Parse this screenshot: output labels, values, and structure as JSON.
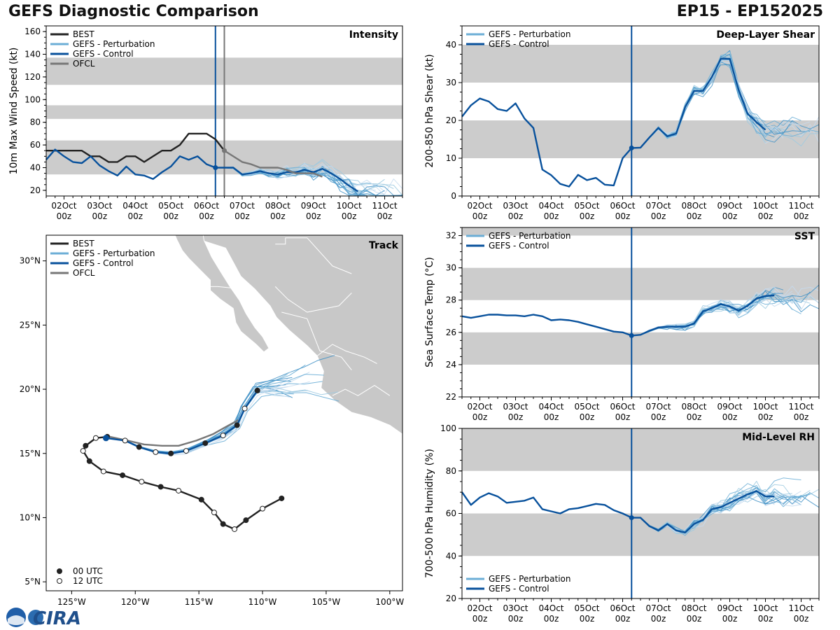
{
  "header": {
    "title": "GEFS Diagnostic Comparison",
    "storm_id": "EP15 - EP152025"
  },
  "logo": {
    "text": "CIRA"
  },
  "colors": {
    "best": "#222222",
    "perturbation": "#6baed6",
    "control": "#08519c",
    "ofcl": "#777777",
    "band": "#cccccc"
  },
  "time_ticks": [
    "02Oct 00z",
    "03Oct 00z",
    "04Oct 00z",
    "05Oct 00z",
    "06Oct 00z",
    "07Oct 00z",
    "08Oct 00z",
    "09Oct 00z",
    "10Oct 00z",
    "11Oct 00z"
  ],
  "chart_data": [
    {
      "id": "intensity",
      "type": "line",
      "title": "Intensity",
      "ylabel": "10m Max Wind Speed (kt)",
      "ylim": [
        15,
        165
      ],
      "yticks": [
        20,
        40,
        60,
        80,
        100,
        120,
        140,
        160
      ],
      "xlim_days": [
        1.5,
        11.5
      ],
      "current_day": 6.25,
      "ofcl_start_day": 6.5,
      "bands": [
        [
          34,
          64
        ],
        [
          83,
          95
        ],
        [
          113,
          137
        ]
      ],
      "legend": [
        "BEST",
        "GEFS - Perturbation",
        "GEFS - Control",
        "OFCL"
      ],
      "series": [
        {
          "name": "BEST",
          "x_start": 1.5,
          "step": 0.25,
          "values": [
            55,
            55,
            55,
            55,
            55,
            50,
            50,
            45,
            45,
            50,
            50,
            45,
            50,
            55,
            55,
            60,
            70,
            70,
            70,
            65,
            55
          ]
        },
        {
          "name": "GEFS - Control",
          "x_start": 1.5,
          "step": 0.25,
          "values": [
            47,
            56,
            50,
            45,
            44,
            50,
            42,
            37,
            33,
            41,
            34,
            33,
            30,
            36,
            41,
            50,
            47,
            50,
            43,
            40,
            40,
            40,
            34,
            35,
            37,
            35,
            34,
            36,
            36,
            38,
            36,
            39,
            35,
            30,
            24,
            19
          ]
        },
        {
          "name": "OFCL",
          "x_start": 6.5,
          "step": 0.25,
          "values": [
            55,
            50,
            45,
            43,
            40,
            40,
            40,
            38,
            35,
            35,
            35,
            32
          ]
        }
      ],
      "perturbation_members": 20
    },
    {
      "id": "shear",
      "type": "line",
      "title": "Deep-Layer Shear",
      "ylabel": "200-850 hPa Shear (kt)",
      "ylim": [
        0,
        45
      ],
      "yticks": [
        0,
        10,
        20,
        30,
        40
      ],
      "xlim_days": [
        1.5,
        11.5
      ],
      "current_day": 6.25,
      "bands": [
        [
          10,
          20
        ],
        [
          30,
          40
        ]
      ],
      "legend": [
        "GEFS - Perturbation",
        "GEFS - Control"
      ],
      "series": [
        {
          "name": "GEFS - Control",
          "x_start": 1.5,
          "step": 0.25,
          "values": [
            21,
            24,
            25.8,
            25,
            23,
            22.5,
            24.5,
            20.5,
            18,
            7,
            5.5,
            3.2,
            2.5,
            5.6,
            4.2,
            4.8,
            3,
            2.8,
            10,
            12.7,
            12.8,
            15.5,
            18,
            15.8,
            16.5,
            23.5,
            27.8,
            27.8,
            31.5,
            36.3,
            36.3,
            28,
            21.8,
            19.5,
            17.5
          ]
        }
      ],
      "perturbation_members": 20
    },
    {
      "id": "sst",
      "type": "line",
      "title": "SST",
      "ylabel": "Sea Surface Temp (°C)",
      "ylim": [
        22,
        32.5
      ],
      "yticks": [
        22,
        24,
        26,
        28,
        30,
        32
      ],
      "xlim_days": [
        1.5,
        11.5
      ],
      "current_day": 6.25,
      "bands": [
        [
          24,
          26
        ],
        [
          28,
          30
        ],
        [
          32,
          32.5
        ]
      ],
      "legend": [
        "GEFS - Perturbation",
        "GEFS - Control"
      ],
      "series": [
        {
          "name": "GEFS - Control",
          "x_start": 1.5,
          "step": 0.25,
          "values": [
            27,
            26.9,
            27,
            27.1,
            27.1,
            27.05,
            27.05,
            27,
            27.1,
            27,
            26.75,
            26.8,
            26.75,
            26.65,
            26.5,
            26.35,
            26.2,
            26.05,
            26,
            25.8,
            25.85,
            26.1,
            26.3,
            26.35,
            26.35,
            26.35,
            26.55,
            27.3,
            27.5,
            27.75,
            27.6,
            27.35,
            27.65,
            28.1,
            28.25,
            28.3
          ]
        }
      ],
      "perturbation_members": 20
    },
    {
      "id": "rh",
      "type": "line",
      "title": "Mid-Level RH",
      "ylabel": "700-500 hPa Humidity (%)",
      "ylim": [
        20,
        100
      ],
      "yticks": [
        20,
        40,
        60,
        80,
        100
      ],
      "xlim_days": [
        1.5,
        11.5
      ],
      "current_day": 6.25,
      "bands": [
        [
          40,
          60
        ],
        [
          80,
          100
        ]
      ],
      "legend": [
        "GEFS - Perturbation",
        "GEFS - Control"
      ],
      "series": [
        {
          "name": "GEFS - Control",
          "x_start": 1.5,
          "step": 0.25,
          "values": [
            70,
            64,
            67.5,
            69.5,
            68,
            65,
            65.5,
            66,
            67.5,
            62,
            61,
            60,
            62,
            62.5,
            63.5,
            64.5,
            64,
            61.5,
            60,
            58,
            58,
            54,
            52,
            55,
            52,
            51,
            55,
            57,
            62,
            63,
            65,
            67,
            69,
            70.5,
            68,
            68
          ]
        }
      ],
      "perturbation_members": 20
    },
    {
      "id": "track",
      "type": "scatter",
      "title": "Track",
      "xlim": [
        -127,
        -99
      ],
      "ylim": [
        4.3,
        32
      ],
      "xticks": [
        -125,
        -120,
        -115,
        -110,
        -105,
        -100
      ],
      "xtick_labels": [
        "125°W",
        "120°W",
        "115°W",
        "110°W",
        "105°W",
        "100°W"
      ],
      "yticks": [
        5,
        10,
        15,
        20,
        25,
        30
      ],
      "ytick_labels": [
        "5°N",
        "10°N",
        "15°N",
        "20°N",
        "25°N",
        "30°N"
      ],
      "legend": [
        "BEST",
        "GEFS - Perturbation",
        "GEFS - Control",
        "OFCL"
      ],
      "marker_legend": [
        "00 UTC",
        "12 UTC"
      ],
      "best_track": [
        [
          -108.5,
          11.5
        ],
        [
          -110,
          10.7
        ],
        [
          -111.3,
          9.8
        ],
        [
          -112.2,
          9.1
        ],
        [
          -113.1,
          9.5
        ],
        [
          -113.8,
          10.4
        ],
        [
          -114.8,
          11.4
        ],
        [
          -116.6,
          12.1
        ],
        [
          -118.0,
          12.4
        ],
        [
          -119.5,
          12.8
        ],
        [
          -121.0,
          13.3
        ],
        [
          -122.5,
          13.6
        ],
        [
          -123.6,
          14.4
        ],
        [
          -124.1,
          15.2
        ],
        [
          -123.9,
          15.6
        ],
        [
          -123.1,
          16.2
        ],
        [
          -122.2,
          16.3
        ]
      ],
      "control_track": [
        [
          -122.3,
          16.2
        ],
        [
          -120.8,
          16.0
        ],
        [
          -119.7,
          15.5
        ],
        [
          -118.4,
          15.1
        ],
        [
          -117.2,
          15.0
        ],
        [
          -116.0,
          15.2
        ],
        [
          -114.5,
          15.8
        ],
        [
          -113.1,
          16.4
        ],
        [
          -112.0,
          17.2
        ],
        [
          -111.4,
          18.5
        ],
        [
          -110.4,
          19.9
        ]
      ],
      "ofcl_track": [
        [
          -122.0,
          16.3
        ],
        [
          -120.6,
          16.0
        ],
        [
          -119.3,
          15.7
        ],
        [
          -117.9,
          15.6
        ],
        [
          -116.6,
          15.6
        ],
        [
          -115.2,
          16.0
        ],
        [
          -113.9,
          16.5
        ],
        [
          -113.0,
          17.0
        ],
        [
          -111.9,
          17.6
        ]
      ],
      "perturbation_members": 20
    }
  ]
}
